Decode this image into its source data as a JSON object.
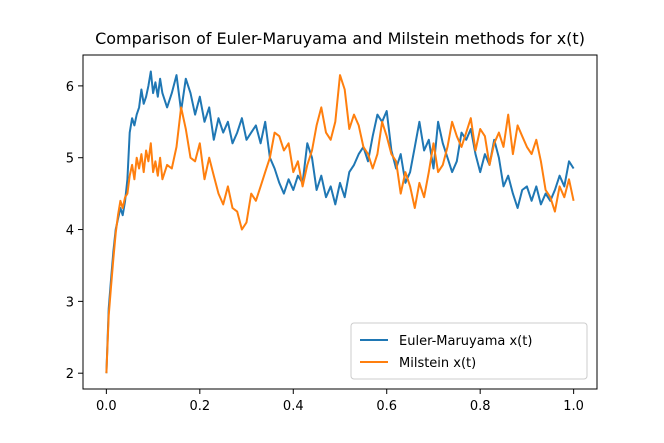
{
  "chart_data": {
    "type": "line",
    "title": "Comparison of Euler-Maruyama and Milstein methods for x(t)",
    "xlabel": "",
    "ylabel": "",
    "xlim": [
      -0.05,
      1.05
    ],
    "ylim": [
      1.78,
      6.43
    ],
    "xticks": [
      0.0,
      0.2,
      0.4,
      0.6,
      0.8,
      1.0
    ],
    "xtick_labels": [
      "0.0",
      "0.2",
      "0.4",
      "0.6",
      "0.8",
      "1.0"
    ],
    "yticks": [
      2,
      3,
      4,
      5,
      6
    ],
    "ytick_labels": [
      "2",
      "3",
      "4",
      "5",
      "6"
    ],
    "grid": false,
    "legend_position": "lower-right",
    "series": [
      {
        "name": "Euler-Maruyama x(t)",
        "color": "#1f77b4",
        "x": [
          0.0,
          0.005,
          0.01,
          0.015,
          0.02,
          0.025,
          0.03,
          0.035,
          0.04,
          0.045,
          0.05,
          0.055,
          0.06,
          0.065,
          0.07,
          0.075,
          0.08,
          0.085,
          0.09,
          0.095,
          0.1,
          0.105,
          0.11,
          0.115,
          0.12,
          0.13,
          0.14,
          0.15,
          0.16,
          0.17,
          0.18,
          0.19,
          0.2,
          0.21,
          0.22,
          0.23,
          0.24,
          0.25,
          0.26,
          0.27,
          0.28,
          0.29,
          0.3,
          0.31,
          0.32,
          0.33,
          0.34,
          0.35,
          0.36,
          0.37,
          0.38,
          0.39,
          0.4,
          0.41,
          0.42,
          0.43,
          0.44,
          0.45,
          0.46,
          0.47,
          0.48,
          0.49,
          0.5,
          0.51,
          0.52,
          0.53,
          0.54,
          0.55,
          0.56,
          0.57,
          0.58,
          0.59,
          0.6,
          0.61,
          0.62,
          0.63,
          0.64,
          0.65,
          0.66,
          0.67,
          0.68,
          0.69,
          0.7,
          0.71,
          0.72,
          0.73,
          0.74,
          0.75,
          0.76,
          0.77,
          0.78,
          0.79,
          0.8,
          0.81,
          0.82,
          0.83,
          0.84,
          0.85,
          0.86,
          0.87,
          0.88,
          0.89,
          0.9,
          0.91,
          0.92,
          0.93,
          0.94,
          0.95,
          0.96,
          0.97,
          0.98,
          0.99,
          1.0
        ],
        "y": [
          2.0,
          2.9,
          3.3,
          3.7,
          4.0,
          4.15,
          4.3,
          4.2,
          4.4,
          4.7,
          5.35,
          5.55,
          5.45,
          5.6,
          5.7,
          5.95,
          5.75,
          5.85,
          6.0,
          6.2,
          5.9,
          6.05,
          5.85,
          6.1,
          5.9,
          5.7,
          5.9,
          6.15,
          5.65,
          6.1,
          5.9,
          5.6,
          5.85,
          5.5,
          5.7,
          5.25,
          5.55,
          5.35,
          5.5,
          5.2,
          5.35,
          5.55,
          5.25,
          5.35,
          5.45,
          5.2,
          5.5,
          5.0,
          4.85,
          4.65,
          4.5,
          4.7,
          4.55,
          4.75,
          4.65,
          5.2,
          5.0,
          4.55,
          4.75,
          4.45,
          4.6,
          4.35,
          4.65,
          4.45,
          4.8,
          4.9,
          5.05,
          5.15,
          4.95,
          5.3,
          5.6,
          5.5,
          5.65,
          5.1,
          4.85,
          5.05,
          4.65,
          4.8,
          5.15,
          5.5,
          5.1,
          5.25,
          4.85,
          5.5,
          5.2,
          5.0,
          4.8,
          4.95,
          5.35,
          5.25,
          5.4,
          5.05,
          4.8,
          5.05,
          4.9,
          5.25,
          5.0,
          4.6,
          4.75,
          4.5,
          4.3,
          4.55,
          4.6,
          4.4,
          4.6,
          4.35,
          4.5,
          4.4,
          4.55,
          4.75,
          4.6,
          4.95,
          4.85
        ]
      },
      {
        "name": "Milstein x(t)",
        "color": "#ff7f0e",
        "x": [
          0.0,
          0.005,
          0.01,
          0.015,
          0.02,
          0.025,
          0.03,
          0.035,
          0.04,
          0.045,
          0.05,
          0.055,
          0.06,
          0.065,
          0.07,
          0.075,
          0.08,
          0.085,
          0.09,
          0.095,
          0.1,
          0.105,
          0.11,
          0.115,
          0.12,
          0.13,
          0.14,
          0.15,
          0.16,
          0.17,
          0.18,
          0.19,
          0.2,
          0.21,
          0.22,
          0.23,
          0.24,
          0.25,
          0.26,
          0.27,
          0.28,
          0.29,
          0.3,
          0.31,
          0.32,
          0.33,
          0.34,
          0.35,
          0.36,
          0.37,
          0.38,
          0.39,
          0.4,
          0.41,
          0.42,
          0.43,
          0.44,
          0.45,
          0.46,
          0.47,
          0.48,
          0.49,
          0.5,
          0.51,
          0.52,
          0.53,
          0.54,
          0.55,
          0.56,
          0.57,
          0.58,
          0.59,
          0.6,
          0.61,
          0.62,
          0.63,
          0.64,
          0.65,
          0.66,
          0.67,
          0.68,
          0.69,
          0.7,
          0.71,
          0.72,
          0.73,
          0.74,
          0.75,
          0.76,
          0.77,
          0.78,
          0.79,
          0.8,
          0.81,
          0.82,
          0.83,
          0.84,
          0.85,
          0.86,
          0.87,
          0.88,
          0.89,
          0.9,
          0.91,
          0.92,
          0.93,
          0.94,
          0.95,
          0.96,
          0.97,
          0.98,
          0.99,
          1.0
        ],
        "y": [
          2.0,
          2.8,
          3.2,
          3.6,
          3.95,
          4.2,
          4.4,
          4.3,
          4.45,
          4.5,
          4.75,
          4.9,
          4.7,
          5.0,
          4.85,
          5.05,
          4.8,
          5.1,
          4.95,
          5.2,
          4.8,
          4.95,
          4.75,
          5.0,
          4.7,
          4.9,
          4.85,
          5.15,
          5.7,
          5.4,
          5.0,
          4.95,
          5.2,
          4.7,
          5.0,
          4.75,
          4.5,
          4.35,
          4.6,
          4.3,
          4.25,
          4.0,
          4.1,
          4.5,
          4.4,
          4.6,
          4.8,
          5.0,
          5.35,
          5.3,
          5.1,
          5.2,
          4.8,
          4.95,
          4.6,
          4.9,
          5.1,
          5.45,
          5.7,
          5.35,
          5.25,
          5.5,
          6.15,
          5.95,
          5.4,
          5.6,
          5.45,
          5.15,
          5.05,
          4.85,
          5.05,
          5.5,
          5.3,
          5.05,
          4.95,
          4.5,
          4.8,
          4.6,
          4.3,
          4.65,
          4.45,
          4.8,
          5.2,
          4.8,
          4.9,
          5.15,
          5.5,
          5.3,
          5.15,
          5.35,
          5.55,
          5.1,
          5.4,
          5.3,
          4.9,
          5.2,
          5.35,
          5.15,
          5.6,
          5.05,
          5.45,
          5.3,
          5.15,
          5.05,
          5.25,
          4.95,
          4.55,
          4.45,
          4.25,
          4.6,
          4.45,
          4.7,
          4.4
        ]
      }
    ]
  }
}
